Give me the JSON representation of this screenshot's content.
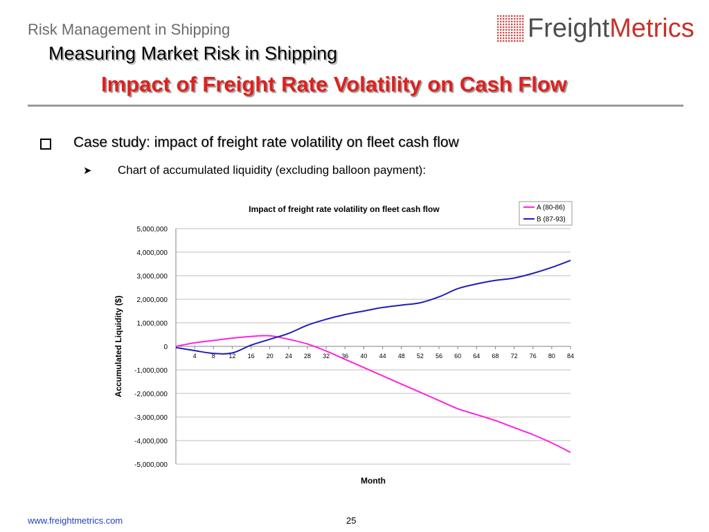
{
  "slide": {
    "subtitle_top": "Risk Management in Shipping",
    "title_main": "Measuring Market Risk in Shipping",
    "title_red": "Impact of Freight Rate Volatility on Cash Flow",
    "bullet1": "Case study: impact of freight rate volatility on fleet cash flow",
    "bullet2": "Chart of accumulated liquidity (excluding balloon payment):",
    "footer_url": "www.freightmetrics.com",
    "page_number": "25",
    "logo_part1": "Freight",
    "logo_part2": "Metrics",
    "colors": {
      "title_red": "#e0201e",
      "logo_red": "#c8302a",
      "series_a": "#ff22dd",
      "series_b": "#1f1fb4"
    }
  },
  "chart_data": {
    "type": "line",
    "title": "Impact of freight rate volatility on fleet cash flow",
    "xlabel": "Month",
    "ylabel": "Accumulated Liquidity ($)",
    "ylim": [
      -5000000,
      5000000
    ],
    "yticks": [
      5000000,
      4000000,
      3000000,
      2000000,
      1000000,
      0,
      -1000000,
      -2000000,
      -3000000,
      -4000000,
      -5000000
    ],
    "ytick_labels": [
      "5,000,000",
      "4,000,000",
      "3,000,000",
      "2,000,000",
      "1,000,000",
      "0",
      "-1,000,000",
      "-2,000,000",
      "-3,000,000",
      "-4,000,000",
      "-5,000,000"
    ],
    "xlim": [
      0,
      84
    ],
    "xticks": [
      4,
      8,
      12,
      16,
      20,
      24,
      28,
      32,
      36,
      40,
      44,
      48,
      52,
      56,
      60,
      64,
      68,
      72,
      76,
      80,
      84
    ],
    "grid": "horizontal",
    "legend": "top-right",
    "x": [
      0,
      4,
      8,
      12,
      16,
      20,
      24,
      28,
      32,
      36,
      40,
      44,
      48,
      52,
      56,
      60,
      64,
      68,
      72,
      76,
      80,
      84
    ],
    "series": [
      {
        "name": "A (80-86)",
        "color": "#ff22dd",
        "values": [
          0,
          150000,
          250000,
          350000,
          420000,
          450000,
          300000,
          100000,
          -200000,
          -550000,
          -900000,
          -1250000,
          -1600000,
          -1950000,
          -2300000,
          -2650000,
          -2900000,
          -3150000,
          -3450000,
          -3750000,
          -4100000,
          -4500000
        ]
      },
      {
        "name": "B (87-93)",
        "color": "#1f1fb4",
        "values": [
          -50000,
          -180000,
          -300000,
          -280000,
          50000,
          300000,
          550000,
          900000,
          1150000,
          1350000,
          1500000,
          1650000,
          1750000,
          1850000,
          2100000,
          2450000,
          2650000,
          2800000,
          2900000,
          3100000,
          3350000,
          3650000
        ]
      }
    ]
  }
}
